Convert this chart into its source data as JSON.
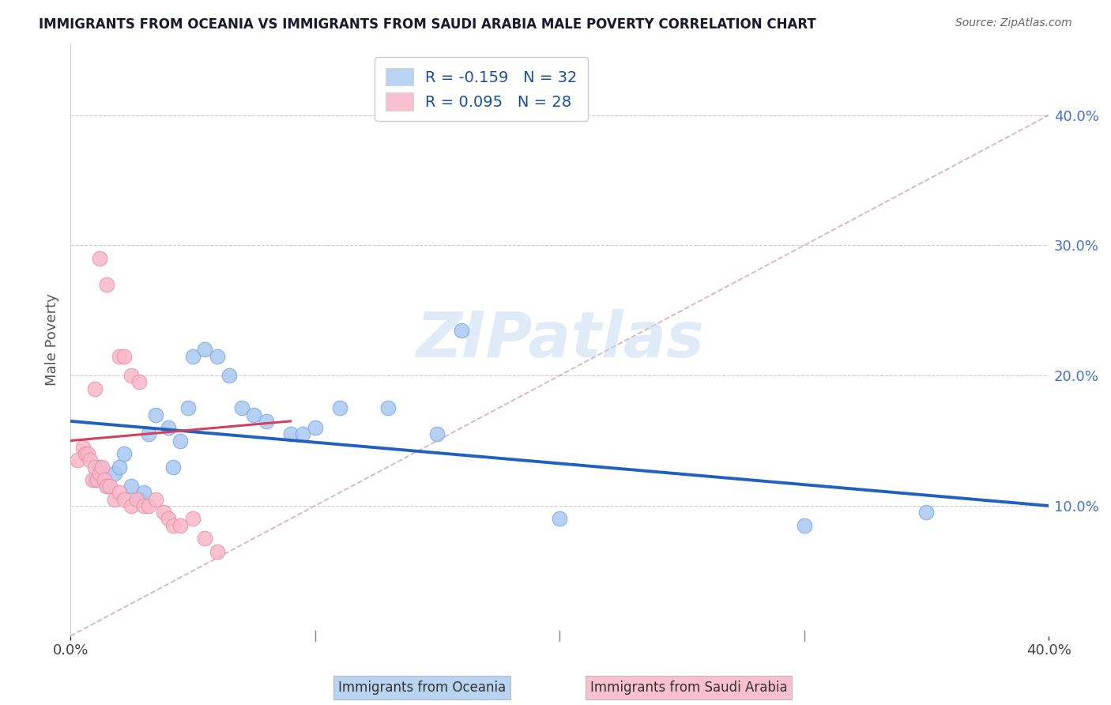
{
  "title": "IMMIGRANTS FROM OCEANIA VS IMMIGRANTS FROM SAUDI ARABIA MALE POVERTY CORRELATION CHART",
  "source": "Source: ZipAtlas.com",
  "ylabel": "Male Poverty",
  "y_ticks": [
    "10.0%",
    "20.0%",
    "30.0%",
    "40.0%"
  ],
  "y_tick_vals": [
    0.1,
    0.2,
    0.3,
    0.4
  ],
  "x_tick_labels": [
    "0.0%",
    "40.0%"
  ],
  "x_tick_vals": [
    0.0,
    0.4
  ],
  "xlim": [
    0.0,
    0.4
  ],
  "ylim": [
    0.0,
    0.455
  ],
  "watermark": "ZIPatlas",
  "oceania_R": -0.159,
  "oceania_N": 32,
  "saudi_R": 0.095,
  "saudi_N": 28,
  "oceania_scatter_color": "#a8c8f0",
  "oceania_edge_color": "#7aaad8",
  "saudi_scatter_color": "#f8b8c8",
  "saudi_edge_color": "#e890a8",
  "oceania_line_color": "#2060c0",
  "saudi_line_color": "#d04060",
  "ref_line_color": "#d8a8b8",
  "legend_box_oceania": "#b8d4f0",
  "legend_box_saudi": "#f8c0d0",
  "legend_text_color": "#1a4fa0",
  "oceania_x": [
    0.01,
    0.012,
    0.015,
    0.018,
    0.02,
    0.022,
    0.025,
    0.028,
    0.03,
    0.032,
    0.035,
    0.04,
    0.042,
    0.045,
    0.048,
    0.05,
    0.055,
    0.06,
    0.065,
    0.07,
    0.075,
    0.08,
    0.09,
    0.095,
    0.1,
    0.11,
    0.13,
    0.15,
    0.16,
    0.2,
    0.3,
    0.35
  ],
  "oceania_y": [
    0.12,
    0.13,
    0.115,
    0.125,
    0.13,
    0.14,
    0.115,
    0.105,
    0.11,
    0.155,
    0.17,
    0.16,
    0.13,
    0.15,
    0.175,
    0.215,
    0.22,
    0.215,
    0.2,
    0.175,
    0.17,
    0.165,
    0.155,
    0.155,
    0.16,
    0.175,
    0.175,
    0.155,
    0.235,
    0.09,
    0.085,
    0.095
  ],
  "saudi_x": [
    0.003,
    0.005,
    0.006,
    0.007,
    0.008,
    0.009,
    0.01,
    0.011,
    0.012,
    0.013,
    0.014,
    0.015,
    0.016,
    0.018,
    0.02,
    0.022,
    0.025,
    0.027,
    0.03,
    0.032,
    0.035,
    0.038,
    0.04,
    0.042,
    0.045,
    0.05,
    0.055,
    0.06
  ],
  "saudi_y": [
    0.135,
    0.145,
    0.14,
    0.14,
    0.135,
    0.12,
    0.13,
    0.12,
    0.125,
    0.13,
    0.12,
    0.115,
    0.115,
    0.105,
    0.11,
    0.105,
    0.1,
    0.105,
    0.1,
    0.1,
    0.105,
    0.095,
    0.09,
    0.085,
    0.085,
    0.09,
    0.075,
    0.065
  ],
  "saudi_outlier_x": [
    0.01,
    0.012,
    0.015,
    0.02,
    0.022,
    0.025,
    0.028
  ],
  "saudi_outlier_y": [
    0.19,
    0.29,
    0.27,
    0.215,
    0.215,
    0.2,
    0.195
  ]
}
